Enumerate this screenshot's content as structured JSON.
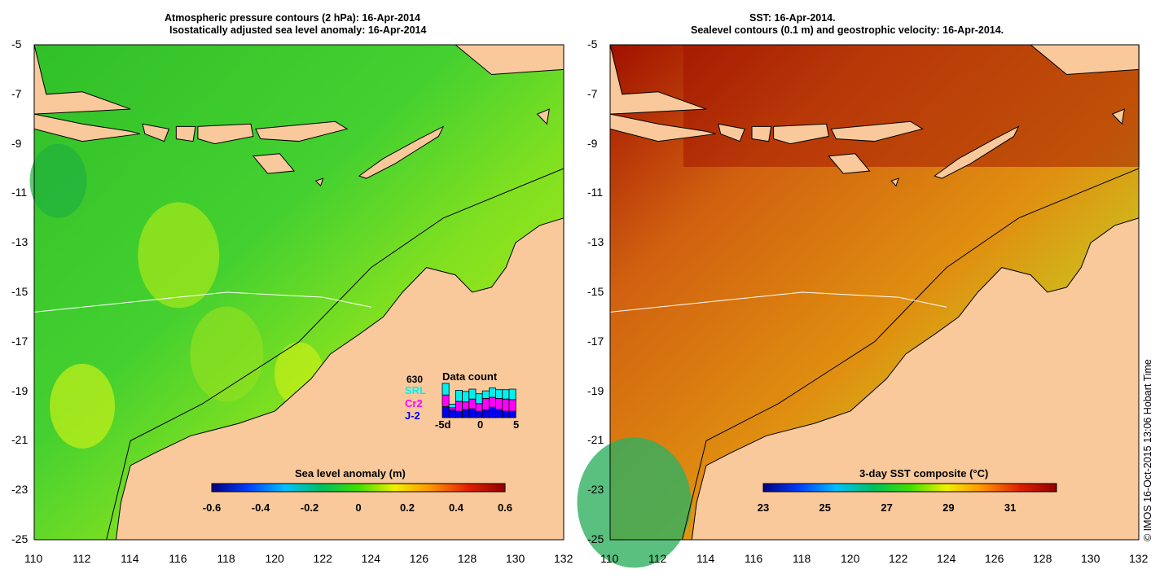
{
  "left_panel": {
    "title_line1": "Atmospheric pressure contours (2 hPa): 16-Apr-2014",
    "title_line2": "Isostatically adjusted sea level anomaly: 16-Apr-2014",
    "colorbar": {
      "label": "Sea level anomaly (m)",
      "ticks": [
        "-0.6",
        "-0.4",
        "-0.2",
        "0",
        "0.2",
        "0.4",
        "0.6"
      ]
    },
    "data_count": {
      "title": "Data count",
      "max_label": "630",
      "max": 630,
      "legend": [
        "SRL",
        "Cr2",
        "J-2"
      ],
      "axis": [
        "-5d",
        "0",
        "5"
      ],
      "series": {
        "J-2": [
          190,
          130,
          110,
          140,
          150,
          110,
          130,
          180,
          140,
          110,
          110
        ],
        "Cr2": [
          200,
          40,
          170,
          130,
          170,
          130,
          200,
          170,
          190,
          210,
          200
        ],
        "SRL": [
          200,
          60,
          190,
          180,
          170,
          170,
          130,
          160,
          150,
          160,
          180
        ]
      }
    }
  },
  "right_panel": {
    "title_line1": "SST: 16-Apr-2014.",
    "title_line2": "Sealevel contours (0.1 m) and geostrophic velocity: 16-Apr-2014.",
    "colorbar": {
      "label": "3-day SST composite (°C)",
      "ticks": [
        "23",
        "25",
        "27",
        "29",
        "31"
      ]
    }
  },
  "axes": {
    "lat_ticks": [
      "-5",
      "-7",
      "-9",
      "-11",
      "-13",
      "-15",
      "-17",
      "-19",
      "-21",
      "-23",
      "-25"
    ],
    "lon_ticks": [
      "110",
      "112",
      "114",
      "116",
      "118",
      "120",
      "122",
      "124",
      "126",
      "128",
      "130",
      "132"
    ]
  },
  "credit": "© IMOS 16-Oct-2015 13:06 Hobart Time",
  "colors": {
    "land": "#f9c99b",
    "ocean_left": "#3ccc28",
    "ocean_right": "#d8700c",
    "coast": "#000000"
  }
}
